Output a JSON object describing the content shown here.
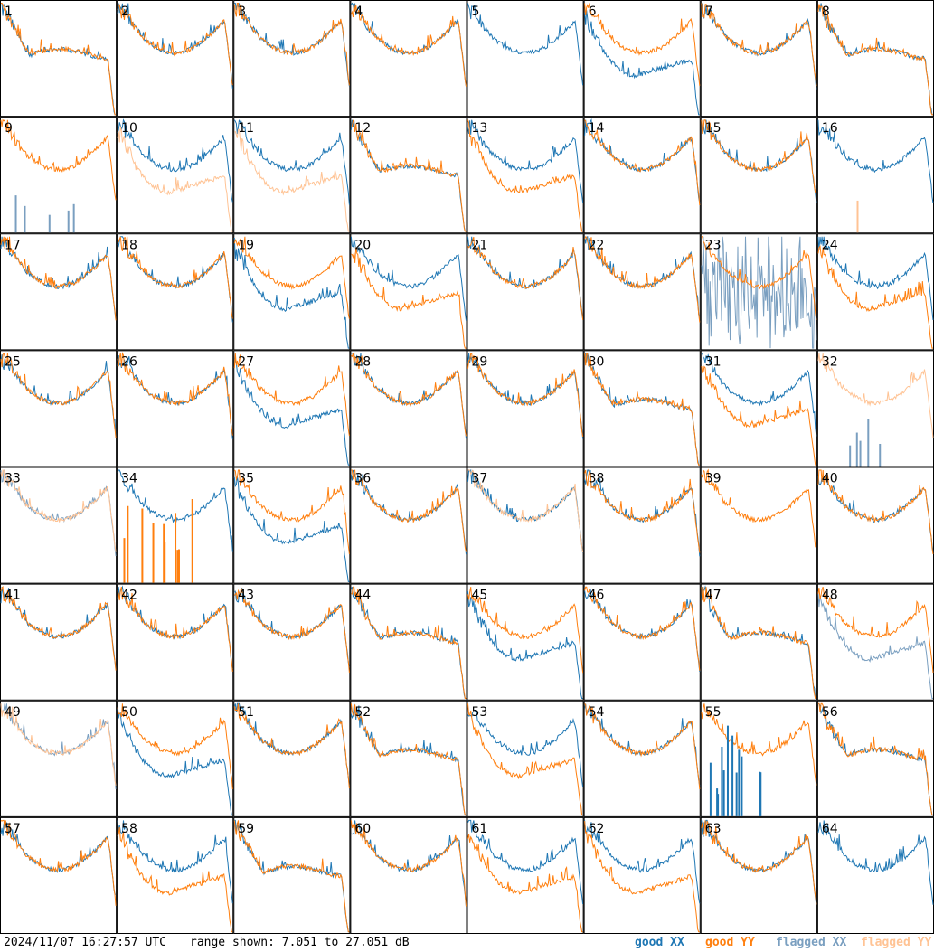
{
  "footer": {
    "timestamp": "2024/11/07 16:27:57 UTC",
    "range_text": "range shown: 7.051 to 27.051 dB"
  },
  "legend": [
    {
      "label": "good XX",
      "color": "#1f77b4"
    },
    {
      "label": "good YY",
      "color": "#ff7f0e"
    },
    {
      "label": "flagged XX",
      "color": "#7a9fc0"
    },
    {
      "label": "flagged YY",
      "color": "#ffc394"
    }
  ],
  "chart_data": {
    "type": "line",
    "title": "",
    "xlabel": "",
    "ylabel": "",
    "ylim": [
      7.051,
      27.051
    ],
    "units": "dB",
    "grid_layout": "8x8 small multiples",
    "panels": [
      {
        "id": "1",
        "xx": "good",
        "yy": "good",
        "shape": "droop"
      },
      {
        "id": "2",
        "xx": "good",
        "yy": "good",
        "shape": "bowl"
      },
      {
        "id": "3",
        "xx": "good",
        "yy": "good",
        "shape": "bowl"
      },
      {
        "id": "4",
        "xx": "good",
        "yy": "good",
        "shape": "bowl"
      },
      {
        "id": "5",
        "xx": "good",
        "yy": "good",
        "shape": "xx_only"
      },
      {
        "id": "6",
        "xx": "good",
        "yy": "good",
        "shape": "split_low_xx"
      },
      {
        "id": "7",
        "xx": "good",
        "yy": "good",
        "shape": "bowl"
      },
      {
        "id": "8",
        "xx": "good",
        "yy": "good",
        "shape": "flat"
      },
      {
        "id": "9",
        "xx": "flagged",
        "yy": "good",
        "shape": "yy_only"
      },
      {
        "id": "10",
        "xx": "good",
        "yy": "flagged",
        "shape": "split_low_yy"
      },
      {
        "id": "11",
        "xx": "good",
        "yy": "flagged",
        "shape": "split_low_yy"
      },
      {
        "id": "12",
        "xx": "good",
        "yy": "good",
        "shape": "flat"
      },
      {
        "id": "13",
        "xx": "good",
        "yy": "good",
        "shape": "split_low_yy"
      },
      {
        "id": "14",
        "xx": "good",
        "yy": "good",
        "shape": "bowl"
      },
      {
        "id": "15",
        "xx": "good",
        "yy": "good",
        "shape": "bowl"
      },
      {
        "id": "16",
        "xx": "good",
        "yy": "flagged",
        "shape": "xx_only"
      },
      {
        "id": "17",
        "xx": "good",
        "yy": "good",
        "shape": "bowl"
      },
      {
        "id": "18",
        "xx": "good",
        "yy": "good",
        "shape": "bowl"
      },
      {
        "id": "19",
        "xx": "good",
        "yy": "good",
        "shape": "split_low_xx"
      },
      {
        "id": "20",
        "xx": "good",
        "yy": "good",
        "shape": "split_low_yy"
      },
      {
        "id": "21",
        "xx": "good",
        "yy": "good",
        "shape": "bowl"
      },
      {
        "id": "22",
        "xx": "good",
        "yy": "good",
        "shape": "bowl"
      },
      {
        "id": "23",
        "xx": "flagged",
        "yy": "good",
        "shape": "noisy_xx"
      },
      {
        "id": "24",
        "xx": "good",
        "yy": "good",
        "shape": "split_low_yy"
      },
      {
        "id": "25",
        "xx": "good",
        "yy": "good",
        "shape": "bowl"
      },
      {
        "id": "26",
        "xx": "good",
        "yy": "good",
        "shape": "bowl"
      },
      {
        "id": "27",
        "xx": "good",
        "yy": "good",
        "shape": "split_low_xx"
      },
      {
        "id": "28",
        "xx": "good",
        "yy": "good",
        "shape": "bowl"
      },
      {
        "id": "29",
        "xx": "good",
        "yy": "good",
        "shape": "bowl"
      },
      {
        "id": "30",
        "xx": "good",
        "yy": "good",
        "shape": "flat"
      },
      {
        "id": "31",
        "xx": "good",
        "yy": "good",
        "shape": "split_low_yy"
      },
      {
        "id": "32",
        "xx": "flagged",
        "yy": "flagged",
        "shape": "yy_only"
      },
      {
        "id": "33",
        "xx": "flagged",
        "yy": "flagged",
        "shape": "bowl"
      },
      {
        "id": "34",
        "xx": "good",
        "yy": "good",
        "shape": "xx_only_yy_spikes"
      },
      {
        "id": "35",
        "xx": "good",
        "yy": "good",
        "shape": "split_low_xx"
      },
      {
        "id": "36",
        "xx": "good",
        "yy": "good",
        "shape": "bowl"
      },
      {
        "id": "37",
        "xx": "good",
        "yy": "flagged",
        "shape": "bowl"
      },
      {
        "id": "38",
        "xx": "good",
        "yy": "good",
        "shape": "bowl"
      },
      {
        "id": "39",
        "xx": "good",
        "yy": "good",
        "shape": "yy_only"
      },
      {
        "id": "40",
        "xx": "good",
        "yy": "good",
        "shape": "bowl"
      },
      {
        "id": "41",
        "xx": "good",
        "yy": "good",
        "shape": "bowl"
      },
      {
        "id": "42",
        "xx": "good",
        "yy": "good",
        "shape": "bowl"
      },
      {
        "id": "43",
        "xx": "good",
        "yy": "good",
        "shape": "bowl"
      },
      {
        "id": "44",
        "xx": "good",
        "yy": "good",
        "shape": "flat"
      },
      {
        "id": "45",
        "xx": "good",
        "yy": "good",
        "shape": "split_low_xx"
      },
      {
        "id": "46",
        "xx": "good",
        "yy": "good",
        "shape": "bowl"
      },
      {
        "id": "47",
        "xx": "good",
        "yy": "good",
        "shape": "flat"
      },
      {
        "id": "48",
        "xx": "flagged",
        "yy": "good",
        "shape": "split_low_xx"
      },
      {
        "id": "49",
        "xx": "flagged",
        "yy": "flagged",
        "shape": "bowl"
      },
      {
        "id": "50",
        "xx": "good",
        "yy": "good",
        "shape": "split_low_xx"
      },
      {
        "id": "51",
        "xx": "good",
        "yy": "good",
        "shape": "bowl"
      },
      {
        "id": "52",
        "xx": "good",
        "yy": "good",
        "shape": "flat"
      },
      {
        "id": "53",
        "xx": "good",
        "yy": "good",
        "shape": "split_low_yy"
      },
      {
        "id": "54",
        "xx": "good",
        "yy": "good",
        "shape": "bowl"
      },
      {
        "id": "55",
        "xx": "good",
        "yy": "good",
        "shape": "yy_only_xx_spikes"
      },
      {
        "id": "56",
        "xx": "good",
        "yy": "good",
        "shape": "flat"
      },
      {
        "id": "57",
        "xx": "good",
        "yy": "good",
        "shape": "bowl"
      },
      {
        "id": "58",
        "xx": "good",
        "yy": "good",
        "shape": "split_low_yy"
      },
      {
        "id": "59",
        "xx": "good",
        "yy": "good",
        "shape": "flat"
      },
      {
        "id": "60",
        "xx": "good",
        "yy": "good",
        "shape": "bowl"
      },
      {
        "id": "61",
        "xx": "good",
        "yy": "good",
        "shape": "split_low_yy"
      },
      {
        "id": "62",
        "xx": "good",
        "yy": "good",
        "shape": "split_low_yy"
      },
      {
        "id": "63",
        "xx": "good",
        "yy": "good",
        "shape": "bowl"
      },
      {
        "id": "64",
        "xx": "good",
        "yy": "good",
        "shape": "xx_only"
      }
    ]
  }
}
